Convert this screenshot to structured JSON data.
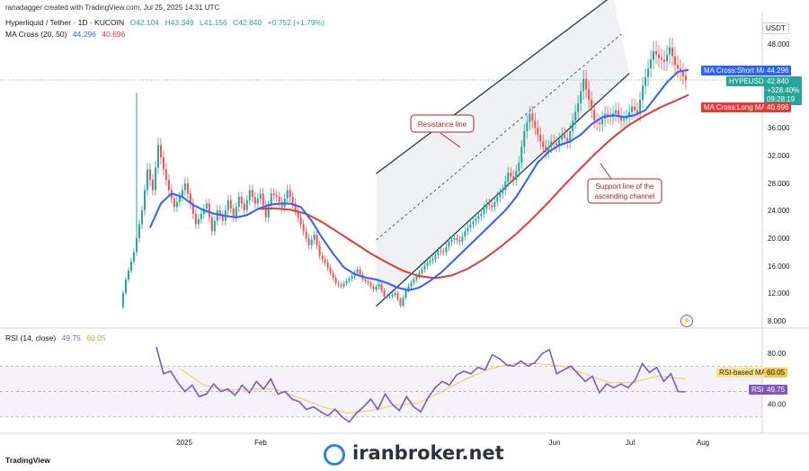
{
  "header": {
    "credit": "ranadagger created with TradingView.com, Jul 25, 2025 14:31 UTC",
    "symbol": "Hyperliquid / Tether · 1D · KUCOIN",
    "o": "O42.104",
    "h": "H43.349",
    "l": "L41.156",
    "c": "C42.840",
    "chg": "+0.752 (+1.79%)",
    "ma_label": "MA Cross (20, 50)",
    "ma_short": "44.296",
    "ma_long": "40.696",
    "rsi_label": "RSI (14, close)",
    "rsi_val": "49.75",
    "rsi_ma": "60.05"
  },
  "currency": "USDT",
  "footer": {
    "brand": "TradingView",
    "watermark": "iranbroker.net"
  },
  "colors": {
    "up": "#26a69a",
    "down": "#ef5350",
    "short_ma": "#2962ff",
    "long_ma": "#e53935",
    "rsi": "#7e57c2",
    "rsi_ma": "#f2c94c",
    "channel": "#1f3b4d",
    "note": "#b22222"
  },
  "labels": {
    "short_ma": "MA Cross:Short MA",
    "short_ma_val": "44.296",
    "symbol_tag": "HYPEUSDT",
    "price": "42.840",
    "pct": "+328.40%",
    "timer": "09:28:19",
    "long_ma": "MA Cross:Long MA",
    "long_ma_val": "40.696",
    "rsi_ma": "RSI-based MA",
    "rsi_ma_val": "60.05",
    "rsi": "RSI",
    "rsi_val": "49.75"
  },
  "annotations": {
    "resistance": "Resistance line",
    "support_1": "Support line of the",
    "support_2": "ascending channel"
  },
  "chart_data": [
    {
      "type": "candlestick",
      "title": "Hyperliquid / Tether · 1D · KUCOIN",
      "x_ticks": [
        "2025",
        "Feb",
        "Jun",
        "Jul",
        "Aug"
      ],
      "y_ticks": [
        8,
        12,
        16,
        20,
        24,
        28,
        32,
        36,
        48
      ],
      "ylim": [
        7.5,
        50
      ],
      "close_path": [
        [
          0,
          10.0
        ],
        [
          2,
          14.0
        ],
        [
          5,
          18.0
        ],
        [
          8,
          24.0
        ],
        [
          10,
          30.0
        ],
        [
          12,
          27.0
        ],
        [
          14,
          33.5
        ],
        [
          16,
          30.0
        ],
        [
          18,
          27.0
        ],
        [
          20,
          24.5
        ],
        [
          22,
          26.0
        ],
        [
          24,
          28.0
        ],
        [
          26,
          25.0
        ],
        [
          28,
          22.0
        ],
        [
          30,
          23.5
        ],
        [
          32,
          25.0
        ],
        [
          34,
          21.0
        ],
        [
          36,
          24.0
        ],
        [
          38,
          22.5
        ],
        [
          40,
          25.5
        ],
        [
          42,
          23.0
        ],
        [
          44,
          26.0
        ],
        [
          46,
          24.0
        ],
        [
          48,
          27.0
        ],
        [
          50,
          25.0
        ],
        [
          52,
          26.5
        ],
        [
          54,
          23.0
        ],
        [
          56,
          26.5
        ],
        [
          58,
          26.0
        ],
        [
          60,
          24.5
        ],
        [
          62,
          27.0
        ],
        [
          64,
          25.0
        ],
        [
          66,
          23.0
        ],
        [
          68,
          21.0
        ],
        [
          70,
          19.0
        ],
        [
          72,
          20.5
        ],
        [
          74,
          17.5
        ],
        [
          76,
          16.5
        ],
        [
          78,
          15.0
        ],
        [
          80,
          13.5
        ],
        [
          82,
          13.0
        ],
        [
          84,
          13.8
        ],
        [
          86,
          14.5
        ],
        [
          88,
          15.5
        ],
        [
          90,
          14.0
        ],
        [
          92,
          13.5
        ],
        [
          94,
          12.5
        ],
        [
          96,
          13.3
        ],
        [
          98,
          11.5
        ],
        [
          100,
          11.5
        ],
        [
          102,
          12.0
        ],
        [
          104,
          10.2
        ],
        [
          106,
          12.5
        ],
        [
          108,
          13.5
        ],
        [
          110,
          14.5
        ],
        [
          112,
          15.5
        ],
        [
          114,
          16.5
        ],
        [
          116,
          17.0
        ],
        [
          118,
          18.2
        ],
        [
          120,
          18.0
        ],
        [
          122,
          19.5
        ],
        [
          124,
          20.0
        ],
        [
          126,
          19.5
        ],
        [
          128,
          21.0
        ],
        [
          130,
          22.0
        ],
        [
          132,
          22.8
        ],
        [
          134,
          23.5
        ],
        [
          136,
          25.0
        ],
        [
          138,
          24.5
        ],
        [
          140,
          26.0
        ],
        [
          142,
          27.0
        ],
        [
          144,
          29.5
        ],
        [
          146,
          28.5
        ],
        [
          148,
          31.0
        ],
        [
          150,
          35.5
        ],
        [
          152,
          38.0
        ],
        [
          154,
          36.0
        ],
        [
          156,
          34.0
        ],
        [
          158,
          32.5
        ],
        [
          160,
          34.0
        ],
        [
          162,
          33.5
        ],
        [
          164,
          35.0
        ],
        [
          166,
          34.0
        ],
        [
          168,
          37.0
        ],
        [
          170,
          39.5
        ],
        [
          172,
          43.0
        ],
        [
          174,
          40.0
        ],
        [
          176,
          37.0
        ],
        [
          178,
          36.5
        ],
        [
          180,
          38.0
        ],
        [
          182,
          37.5
        ],
        [
          184,
          38.5
        ],
        [
          186,
          37.0
        ],
        [
          188,
          37.5
        ],
        [
          190,
          39.0
        ],
        [
          192,
          38.0
        ],
        [
          194,
          42.0
        ],
        [
          196,
          44.5
        ],
        [
          198,
          47.0
        ],
        [
          200,
          46.0
        ],
        [
          202,
          45.5
        ],
        [
          204,
          47.5
        ],
        [
          206,
          45.0
        ],
        [
          208,
          44.0
        ],
        [
          210,
          42.8
        ]
      ],
      "short_ma_path": [
        [
          10,
          21.5
        ],
        [
          14,
          25.0
        ],
        [
          18,
          26.5
        ],
        [
          22,
          26.0
        ],
        [
          26,
          24.8
        ],
        [
          30,
          24.0
        ],
        [
          34,
          23.5
        ],
        [
          38,
          23.2
        ],
        [
          42,
          23.0
        ],
        [
          46,
          23.3
        ],
        [
          50,
          24.2
        ],
        [
          54,
          24.8
        ],
        [
          58,
          25.0
        ],
        [
          62,
          25.0
        ],
        [
          66,
          24.5
        ],
        [
          70,
          22.5
        ],
        [
          74,
          20.0
        ],
        [
          78,
          17.8
        ],
        [
          82,
          15.8
        ],
        [
          86,
          14.8
        ],
        [
          90,
          14.3
        ],
        [
          94,
          14.0
        ],
        [
          98,
          13.5
        ],
        [
          102,
          12.8
        ],
        [
          106,
          12.4
        ],
        [
          110,
          12.8
        ],
        [
          114,
          13.8
        ],
        [
          118,
          15.0
        ],
        [
          122,
          16.5
        ],
        [
          126,
          18.0
        ],
        [
          130,
          19.5
        ],
        [
          134,
          21.0
        ],
        [
          138,
          22.5
        ],
        [
          142,
          24.0
        ],
        [
          146,
          26.0
        ],
        [
          150,
          28.5
        ],
        [
          154,
          31.0
        ],
        [
          158,
          32.5
        ],
        [
          162,
          33.5
        ],
        [
          166,
          34.0
        ],
        [
          170,
          35.0
        ],
        [
          174,
          36.5
        ],
        [
          178,
          37.5
        ],
        [
          182,
          37.8
        ],
        [
          186,
          37.5
        ],
        [
          190,
          37.8
        ],
        [
          194,
          38.5
        ],
        [
          198,
          40.5
        ],
        [
          202,
          42.5
        ],
        [
          206,
          44.0
        ],
        [
          210,
          44.296
        ]
      ],
      "long_ma_path": [
        [
          50,
          24.2
        ],
        [
          56,
          24.3
        ],
        [
          62,
          24.1
        ],
        [
          68,
          23.5
        ],
        [
          74,
          22.3
        ],
        [
          80,
          20.8
        ],
        [
          86,
          19.3
        ],
        [
          92,
          17.8
        ],
        [
          98,
          16.5
        ],
        [
          104,
          15.3
        ],
        [
          110,
          14.5
        ],
        [
          116,
          14.2
        ],
        [
          122,
          14.6
        ],
        [
          128,
          15.6
        ],
        [
          134,
          17.0
        ],
        [
          140,
          18.7
        ],
        [
          146,
          20.6
        ],
        [
          152,
          22.8
        ],
        [
          158,
          25.2
        ],
        [
          164,
          27.8
        ],
        [
          170,
          30.2
        ],
        [
          176,
          32.5
        ],
        [
          182,
          34.6
        ],
        [
          188,
          36.4
        ],
        [
          194,
          37.8
        ],
        [
          200,
          39.0
        ],
        [
          206,
          40.0
        ],
        [
          210,
          40.696
        ]
      ],
      "last_price": 42.84,
      "short_ma": 44.296,
      "long_ma": 40.696,
      "change_pct": "+328.40%",
      "channel": {
        "upper_line": [
          [
            94,
            29.4
          ],
          [
            182,
            55.0
          ]
        ],
        "lower_line": [
          [
            94,
            10.1
          ],
          [
            188,
            43.8
          ]
        ],
        "midline": "dashed"
      }
    },
    {
      "type": "line",
      "title": "RSI (14, close)",
      "y_ticks": [
        40,
        80
      ],
      "ylim": [
        20,
        95
      ],
      "bands": [
        30,
        70
      ],
      "rsi_path": [
        [
          10,
          85
        ],
        [
          13,
          64
        ],
        [
          16,
          66
        ],
        [
          19,
          57
        ],
        [
          22,
          50
        ],
        [
          25,
          55
        ],
        [
          28,
          46
        ],
        [
          31,
          48
        ],
        [
          34,
          56
        ],
        [
          37,
          50
        ],
        [
          40,
          52
        ],
        [
          43,
          47
        ],
        [
          46,
          55
        ],
        [
          49,
          49
        ],
        [
          52,
          58
        ],
        [
          55,
          52
        ],
        [
          58,
          60
        ],
        [
          61,
          48
        ],
        [
          64,
          50
        ],
        [
          67,
          44
        ],
        [
          70,
          42
        ],
        [
          73,
          36
        ],
        [
          76,
          38
        ],
        [
          79,
          34
        ],
        [
          82,
          31
        ],
        [
          85,
          36
        ],
        [
          88,
          30
        ],
        [
          91,
          26
        ],
        [
          94,
          33
        ],
        [
          97,
          38
        ],
        [
          100,
          44
        ],
        [
          103,
          36
        ],
        [
          106,
          48
        ],
        [
          109,
          40
        ],
        [
          112,
          35
        ],
        [
          115,
          46
        ],
        [
          118,
          38
        ],
        [
          121,
          34
        ],
        [
          124,
          45
        ],
        [
          127,
          53
        ],
        [
          130,
          58
        ],
        [
          133,
          55
        ],
        [
          136,
          63
        ],
        [
          139,
          66
        ],
        [
          142,
          64
        ],
        [
          145,
          69
        ],
        [
          148,
          67
        ],
        [
          151,
          79
        ],
        [
          154,
          76
        ],
        [
          157,
          71
        ],
        [
          160,
          70
        ],
        [
          163,
          74
        ],
        [
          166,
          70
        ],
        [
          169,
          73
        ],
        [
          172,
          80
        ],
        [
          175,
          83
        ],
        [
          178,
          64
        ],
        [
          181,
          67
        ],
        [
          184,
          70
        ],
        [
          187,
          64
        ],
        [
          190,
          58
        ],
        [
          193,
          62
        ],
        [
          196,
          49
        ],
        [
          199,
          56
        ],
        [
          202,
          53
        ],
        [
          205,
          56
        ],
        [
          208,
          53
        ],
        [
          211,
          59
        ],
        [
          214,
          72
        ],
        [
          217,
          65
        ],
        [
          220,
          69
        ],
        [
          223,
          58
        ],
        [
          226,
          64
        ],
        [
          229,
          50
        ],
        [
          232,
          49.75
        ]
      ],
      "rsi_ma_path": [
        [
          20,
          68
        ],
        [
          30,
          55
        ],
        [
          40,
          51
        ],
        [
          50,
          52
        ],
        [
          60,
          52
        ],
        [
          70,
          45
        ],
        [
          80,
          38
        ],
        [
          90,
          33
        ],
        [
          100,
          35
        ],
        [
          110,
          39
        ],
        [
          120,
          41
        ],
        [
          130,
          50
        ],
        [
          140,
          60
        ],
        [
          150,
          68
        ],
        [
          160,
          72
        ],
        [
          170,
          72
        ],
        [
          180,
          70
        ],
        [
          190,
          64
        ],
        [
          200,
          57
        ],
        [
          210,
          57
        ],
        [
          220,
          62
        ],
        [
          232,
          60.05
        ]
      ],
      "last_rsi": 49.75,
      "last_rsi_ma": 60.05
    }
  ]
}
